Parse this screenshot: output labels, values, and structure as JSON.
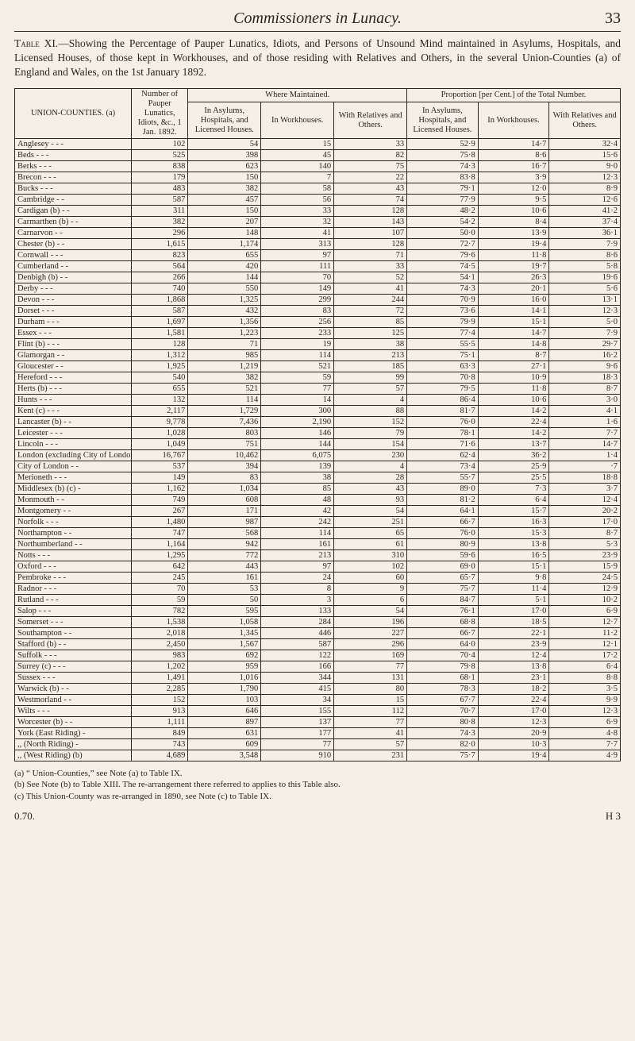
{
  "header": {
    "running_title": "Commissioners in Lunacy.",
    "page_no": "33"
  },
  "caption_parts": {
    "lead": "Table XI.",
    "body": "—Showing the Percentage of Pauper Lunatics, Idiots, and Persons of Unsound Mind maintained in Asylums, Hospitals, and Licensed Houses, of those kept in Workhouses, and of those residing with Relatives and Others, in the several Union-Counties (a) of England and Wales, on the 1st January 1892."
  },
  "columns": {
    "c1": "UNION-COUNTIES.\n(a)",
    "c2": "Number of Pauper Lunatics, Idiots, &c., 1 Jan. 1892.",
    "grp_where": "Where Maintained.",
    "grp_prop": "Proportion [per Cent.] of the Total Number.",
    "c3": "In Asylums, Hospitals, and Licensed Houses.",
    "c4": "In Workhouses.",
    "c5": "With Relatives and Others.",
    "c6": "In Asylums, Hospitals, and Licensed Houses.",
    "c7": "In Workhouses.",
    "c8": "With Relatives and Others."
  },
  "rows": [
    {
      "n": "Anglesey  -   -   -",
      "v": [
        "102",
        "54",
        "15",
        "33",
        "52·9",
        "14·7",
        "32·4"
      ]
    },
    {
      "n": "Beds     -   -   -",
      "v": [
        "525",
        "398",
        "45",
        "82",
        "75·8",
        "8·6",
        "15·6"
      ]
    },
    {
      "n": "Berks    -   -   -",
      "v": [
        "838",
        "623",
        "140",
        "75",
        "74·3",
        "16·7",
        "9·0"
      ]
    },
    {
      "n": "Brecon   -   -   -",
      "v": [
        "179",
        "150",
        "7",
        "22",
        "83·8",
        "3·9",
        "12·3"
      ]
    },
    {
      "n": "Bucks    -   -   -",
      "v": [
        "483",
        "382",
        "58",
        "43",
        "79·1",
        "12·0",
        "8·9"
      ]
    },
    {
      "n": "Cambridge    -   -",
      "v": [
        "587",
        "457",
        "56",
        "74",
        "77·9",
        "9·5",
        "12·6"
      ]
    },
    {
      "n": "Cardigan (b)   -  -",
      "v": [
        "311",
        "150",
        "33",
        "128",
        "48·2",
        "10·6",
        "41·2"
      ]
    },
    {
      "n": "Carmarthen (b) -  -",
      "v": [
        "382",
        "207",
        "32",
        "143",
        "54·2",
        "8·4",
        "37·4"
      ]
    },
    {
      "n": "Carnarvon    -   -",
      "v": [
        "296",
        "148",
        "41",
        "107",
        "50·0",
        "13·9",
        "36·1"
      ]
    },
    {
      "n": "Chester (b)  -   -",
      "v": [
        "1,615",
        "1,174",
        "313",
        "128",
        "72·7",
        "19·4",
        "7·9"
      ]
    },
    {
      "n": "Cornwall  -  -   -",
      "v": [
        "823",
        "655",
        "97",
        "71",
        "79·6",
        "11·8",
        "8·6"
      ]
    },
    {
      "n": "Cumberland   -   -",
      "v": [
        "564",
        "420",
        "111",
        "33",
        "74·5",
        "19·7",
        "5·8"
      ]
    },
    {
      "n": "Denbigh (b)  -   -",
      "v": [
        "266",
        "144",
        "70",
        "52",
        "54·1",
        "26·3",
        "19·6"
      ]
    },
    {
      "n": "Derby    -   -   -",
      "v": [
        "740",
        "550",
        "149",
        "41",
        "74·3",
        "20·1",
        "5·6"
      ]
    },
    {
      "n": "Devon    -   -   -",
      "v": [
        "1,868",
        "1,325",
        "299",
        "244",
        "70·9",
        "16·0",
        "13·1"
      ]
    },
    {
      "n": "Dorset   -   -   -",
      "v": [
        "587",
        "432",
        "83",
        "72",
        "73·6",
        "14·1",
        "12·3"
      ]
    },
    {
      "n": "Durham   -   -   -",
      "v": [
        "1,697",
        "1,356",
        "256",
        "85",
        "79·9",
        "15·1",
        "5·0"
      ]
    },
    {
      "n": "Essex    -   -   -",
      "v": [
        "1,581",
        "1,223",
        "233",
        "125",
        "77·4",
        "14·7",
        "7·9"
      ]
    },
    {
      "n": "Flint (b) -  -   -",
      "v": [
        "128",
        "71",
        "19",
        "38",
        "55·5",
        "14·8",
        "29·7"
      ]
    },
    {
      "n": "Glamorgan    -   -",
      "v": [
        "1,312",
        "985",
        "114",
        "213",
        "75·1",
        "8·7",
        "16·2"
      ]
    },
    {
      "n": "Gloucester   -   -",
      "v": [
        "1,925",
        "1,219",
        "521",
        "185",
        "63·3",
        "27·1",
        "9·6"
      ]
    },
    {
      "n": "Hereford -   -   -",
      "v": [
        "540",
        "382",
        "59",
        "99",
        "70·8",
        "10·9",
        "18·3"
      ]
    },
    {
      "n": "Herts (b) -  -   -",
      "v": [
        "655",
        "521",
        "77",
        "57",
        "79·5",
        "11·8",
        "8·7"
      ]
    },
    {
      "n": "Hunts    -   -   -",
      "v": [
        "132",
        "114",
        "14",
        "4",
        "86·4",
        "10·6",
        "3·0"
      ]
    },
    {
      "n": "Kent (c)  -  -   -",
      "v": [
        "2,117",
        "1,729",
        "300",
        "88",
        "81·7",
        "14·2",
        "4·1"
      ]
    },
    {
      "n": "Lancaster (b) -  -",
      "v": [
        "9,778",
        "7,436",
        "2,190",
        "152",
        "76·0",
        "22·4",
        "1·6"
      ]
    },
    {
      "n": "Leicester -  -   -",
      "v": [
        "1,028",
        "803",
        "146",
        "79",
        "78·1",
        "14·2",
        "7·7"
      ]
    },
    {
      "n": "Lincoln   -  -   -",
      "v": [
        "1,049",
        "751",
        "144",
        "154",
        "71·6",
        "13·7",
        "14·7"
      ]
    },
    {
      "n": "London (excluding City of London).",
      "v": [
        "16,767",
        "10,462",
        "6,075",
        "230",
        "62·4",
        "36·2",
        "1·4"
      ]
    },
    {
      "n": "City of London -  -",
      "v": [
        "537",
        "394",
        "139",
        "4",
        "73·4",
        "25·9",
        "·7"
      ]
    },
    {
      "n": "Merioneth -  -   -",
      "v": [
        "149",
        "83",
        "38",
        "28",
        "55·7",
        "25·5",
        "18·8"
      ]
    },
    {
      "n": "Middlesex (b) (c) -",
      "v": [
        "1,162",
        "1,034",
        "85",
        "43",
        "89·0",
        "7·3",
        "3·7"
      ]
    },
    {
      "n": "Monmouth     -   -",
      "v": [
        "749",
        "608",
        "48",
        "93",
        "81·2",
        "6·4",
        "12·4"
      ]
    },
    {
      "n": "Montgomery   -   -",
      "v": [
        "267",
        "171",
        "42",
        "54",
        "64·1",
        "15·7",
        "20·2"
      ]
    },
    {
      "n": "Norfolk   -  -   -",
      "v": [
        "1,480",
        "987",
        "242",
        "251",
        "66·7",
        "16·3",
        "17·0"
      ]
    },
    {
      "n": "Northampton  -   -",
      "v": [
        "747",
        "568",
        "114",
        "65",
        "76·0",
        "15·3",
        "8·7"
      ]
    },
    {
      "n": "Northumberland - -",
      "v": [
        "1,164",
        "942",
        "161",
        "61",
        "80·9",
        "13·8",
        "5·3"
      ]
    },
    {
      "n": "Notts    -   -   -",
      "v": [
        "1,295",
        "772",
        "213",
        "310",
        "59·6",
        "16·5",
        "23·9"
      ]
    },
    {
      "n": "Oxford   -   -   -",
      "v": [
        "642",
        "443",
        "97",
        "102",
        "69·0",
        "15·1",
        "15·9"
      ]
    },
    {
      "n": "Pembroke -   -   -",
      "v": [
        "245",
        "161",
        "24",
        "60",
        "65·7",
        "9·8",
        "24·5"
      ]
    },
    {
      "n": "Radnor   -   -   -",
      "v": [
        "70",
        "53",
        "8",
        "9",
        "75·7",
        "11·4",
        "12·9"
      ]
    },
    {
      "n": "Rutland  -   -   -",
      "v": [
        "59",
        "50",
        "3",
        "6",
        "84·7",
        "5·1",
        "10·2"
      ]
    },
    {
      "n": "Salop    -   -   -",
      "v": [
        "782",
        "595",
        "133",
        "54",
        "76·1",
        "17·0",
        "6·9"
      ]
    },
    {
      "n": "Somerset -   -   -",
      "v": [
        "1,538",
        "1,058",
        "284",
        "196",
        "68·8",
        "18·5",
        "12·7"
      ]
    },
    {
      "n": "Southampton  -   -",
      "v": [
        "2,018",
        "1,345",
        "446",
        "227",
        "66·7",
        "22·1",
        "11·2"
      ]
    },
    {
      "n": "Stafford (b) -   -",
      "v": [
        "2,450",
        "1,567",
        "587",
        "296",
        "64·0",
        "23·9",
        "12·1"
      ]
    },
    {
      "n": "Suffolk  -   -   -",
      "v": [
        "983",
        "692",
        "122",
        "169",
        "70·4",
        "12·4",
        "17·2"
      ]
    },
    {
      "n": "Surrey (c) - -   -",
      "v": [
        "1,202",
        "959",
        "166",
        "77",
        "79·8",
        "13·8",
        "6·4"
      ]
    },
    {
      "n": "Sussex   -   -   -",
      "v": [
        "1,491",
        "1,016",
        "344",
        "131",
        "68·1",
        "23·1",
        "8·8"
      ]
    },
    {
      "n": "Warwick (b)  -   -",
      "v": [
        "2,285",
        "1,790",
        "415",
        "80",
        "78·3",
        "18·2",
        "3·5"
      ]
    },
    {
      "n": "Westmorland  -   -",
      "v": [
        "152",
        "103",
        "34",
        "15",
        "67·7",
        "22·4",
        "9·9"
      ]
    },
    {
      "n": "Wilts    -   -   -",
      "v": [
        "913",
        "646",
        "155",
        "112",
        "70·7",
        "17·0",
        "12·3"
      ]
    },
    {
      "n": "Worcester (b) -  -",
      "v": [
        "1,111",
        "897",
        "137",
        "77",
        "80·8",
        "12·3",
        "6·9"
      ]
    },
    {
      "n": "York (East Riding) -",
      "v": [
        "849",
        "631",
        "177",
        "41",
        "74·3",
        "20·9",
        "4·8"
      ]
    },
    {
      "n": " ,,  (North Riding) -",
      "v": [
        "743",
        "609",
        "77",
        "57",
        "82·0",
        "10·3",
        "7·7"
      ]
    },
    {
      "n": " ,,  (West Riding) (b)",
      "v": [
        "4,689",
        "3,548",
        "910",
        "231",
        "75·7",
        "19·4",
        "4·9"
      ]
    }
  ],
  "footnotes": [
    "(a) “ Union-Counties,” see Note (a) to Table IX.",
    "(b) See Note (b) to Table XIII.  The re-arrangement there referred to applies to this Table also.",
    "(c) This Union-County was re-arranged in 1890, see Note (c) to Table IX."
  ],
  "footer": {
    "left": "0.70.",
    "right": "H 3"
  }
}
